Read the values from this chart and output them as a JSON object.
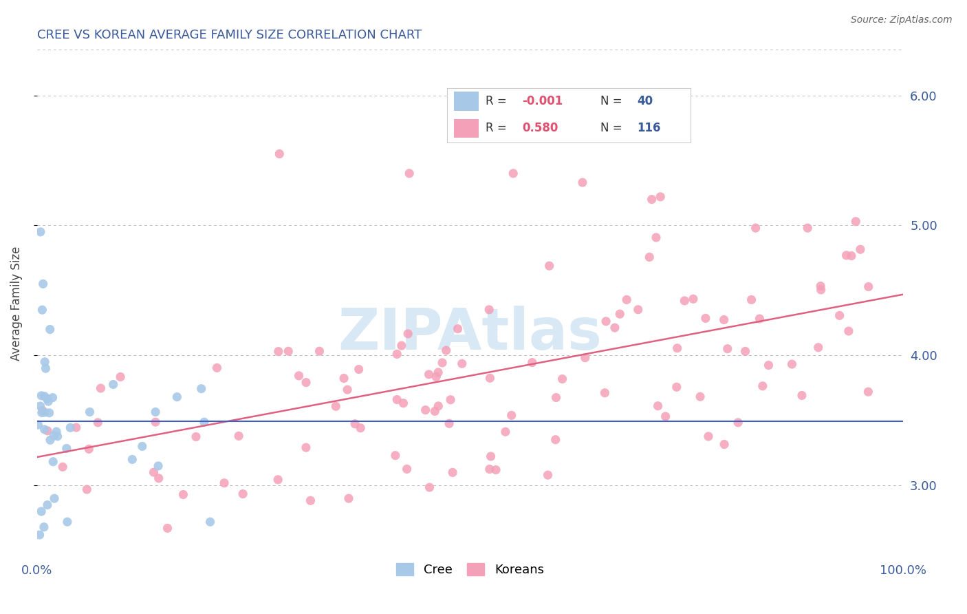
{
  "title": "CREE VS KOREAN AVERAGE FAMILY SIZE CORRELATION CHART",
  "source": "Source: ZipAtlas.com",
  "ylabel": "Average Family Size",
  "xlim": [
    0.0,
    100.0
  ],
  "ylim": [
    2.45,
    6.35
  ],
  "yticks": [
    3.0,
    4.0,
    5.0,
    6.0
  ],
  "ytick_labels": [
    "3.00",
    "4.00",
    "5.00",
    "6.00"
  ],
  "xticks": [
    0.0,
    100.0
  ],
  "xtick_labels": [
    "0.0%",
    "100.0%"
  ],
  "cree_color": "#a8c8e8",
  "korean_color": "#f4a0b8",
  "cree_line_color": "#4060c0",
  "korean_line_color": "#e06080",
  "background_color": "#ffffff",
  "grid_color": "#bbbbbb",
  "title_color": "#3a5a9a",
  "source_color": "#666666",
  "r_value_color": "#e05070",
  "n_value_color": "#3a5a9a",
  "label_color": "#3a5a9a",
  "cree_R": -0.001,
  "cree_N": 40,
  "korean_R": 0.58,
  "korean_N": 116,
  "watermark_text": "ZIPAtlas",
  "watermark_color": "#d8e8f4",
  "legend_label1": "Cree",
  "legend_label2": "Koreans"
}
